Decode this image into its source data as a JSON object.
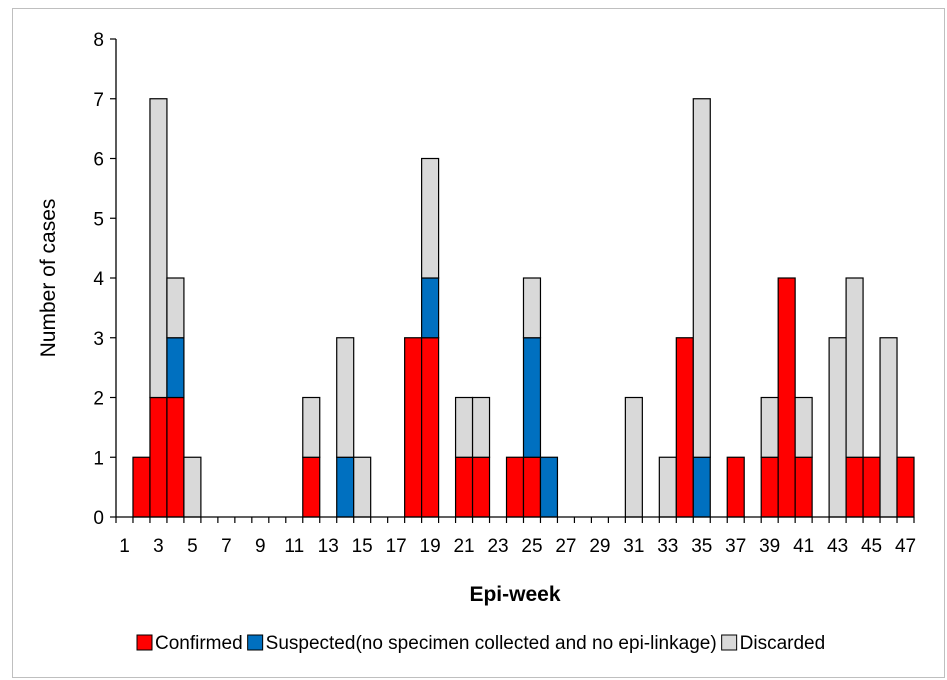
{
  "chart_data": {
    "type": "bar",
    "stacked": true,
    "xlabel": "Epi-week",
    "ylabel": "Number of cases",
    "ylim": [
      0,
      8
    ],
    "yticks": [
      "0",
      "1",
      "2",
      "3",
      "4",
      "5",
      "6",
      "7",
      "8"
    ],
    "grid": false,
    "legend_position": "bottom",
    "categories": [
      "1",
      "2",
      "3",
      "4",
      "5",
      "6",
      "7",
      "8",
      "9",
      "10",
      "11",
      "12",
      "13",
      "14",
      "15",
      "16",
      "17",
      "18",
      "19",
      "20",
      "21",
      "22",
      "23",
      "24",
      "25",
      "26",
      "27",
      "28",
      "29",
      "30",
      "31",
      "32",
      "33",
      "34",
      "35",
      "36",
      "37",
      "38",
      "39",
      "40",
      "41",
      "42",
      "43",
      "44",
      "45",
      "46",
      "47"
    ],
    "xtick_labels": [
      "1",
      "3",
      "5",
      "7",
      "9",
      "11",
      "13",
      "15",
      "17",
      "19",
      "21",
      "23",
      "25",
      "27",
      "29",
      "31",
      "33",
      "35",
      "37",
      "39",
      "41",
      "43",
      "45",
      "47"
    ],
    "series": [
      {
        "name": "Confirmed",
        "color": "#ff0000",
        "values": [
          0,
          1,
          2,
          2,
          0,
          0,
          0,
          0,
          0,
          0,
          0,
          1,
          0,
          0,
          0,
          0,
          0,
          3,
          3,
          0,
          1,
          1,
          0,
          1,
          1,
          0,
          0,
          0,
          0,
          0,
          0,
          0,
          0,
          3,
          0,
          0,
          1,
          0,
          1,
          4,
          1,
          0,
          0,
          1,
          1,
          0,
          1
        ]
      },
      {
        "name": "Suspected(no specimen collected and no epi-linkage)",
        "color": "#0070c0",
        "values": [
          0,
          0,
          0,
          1,
          0,
          0,
          0,
          0,
          0,
          0,
          0,
          0,
          0,
          1,
          0,
          0,
          0,
          0,
          1,
          0,
          0,
          0,
          0,
          0,
          2,
          1,
          0,
          0,
          0,
          0,
          0,
          0,
          0,
          0,
          1,
          0,
          0,
          0,
          0,
          0,
          0,
          0,
          0,
          0,
          0,
          0,
          0
        ]
      },
      {
        "name": "Discarded",
        "color": "#d9d9d9",
        "values": [
          0,
          0,
          5,
          1,
          1,
          0,
          0,
          0,
          0,
          0,
          0,
          1,
          0,
          2,
          1,
          0,
          0,
          0,
          2,
          0,
          1,
          1,
          0,
          0,
          1,
          0,
          0,
          0,
          0,
          0,
          2,
          0,
          1,
          0,
          6,
          0,
          0,
          0,
          1,
          0,
          1,
          0,
          3,
          3,
          0,
          3,
          0
        ]
      }
    ]
  }
}
